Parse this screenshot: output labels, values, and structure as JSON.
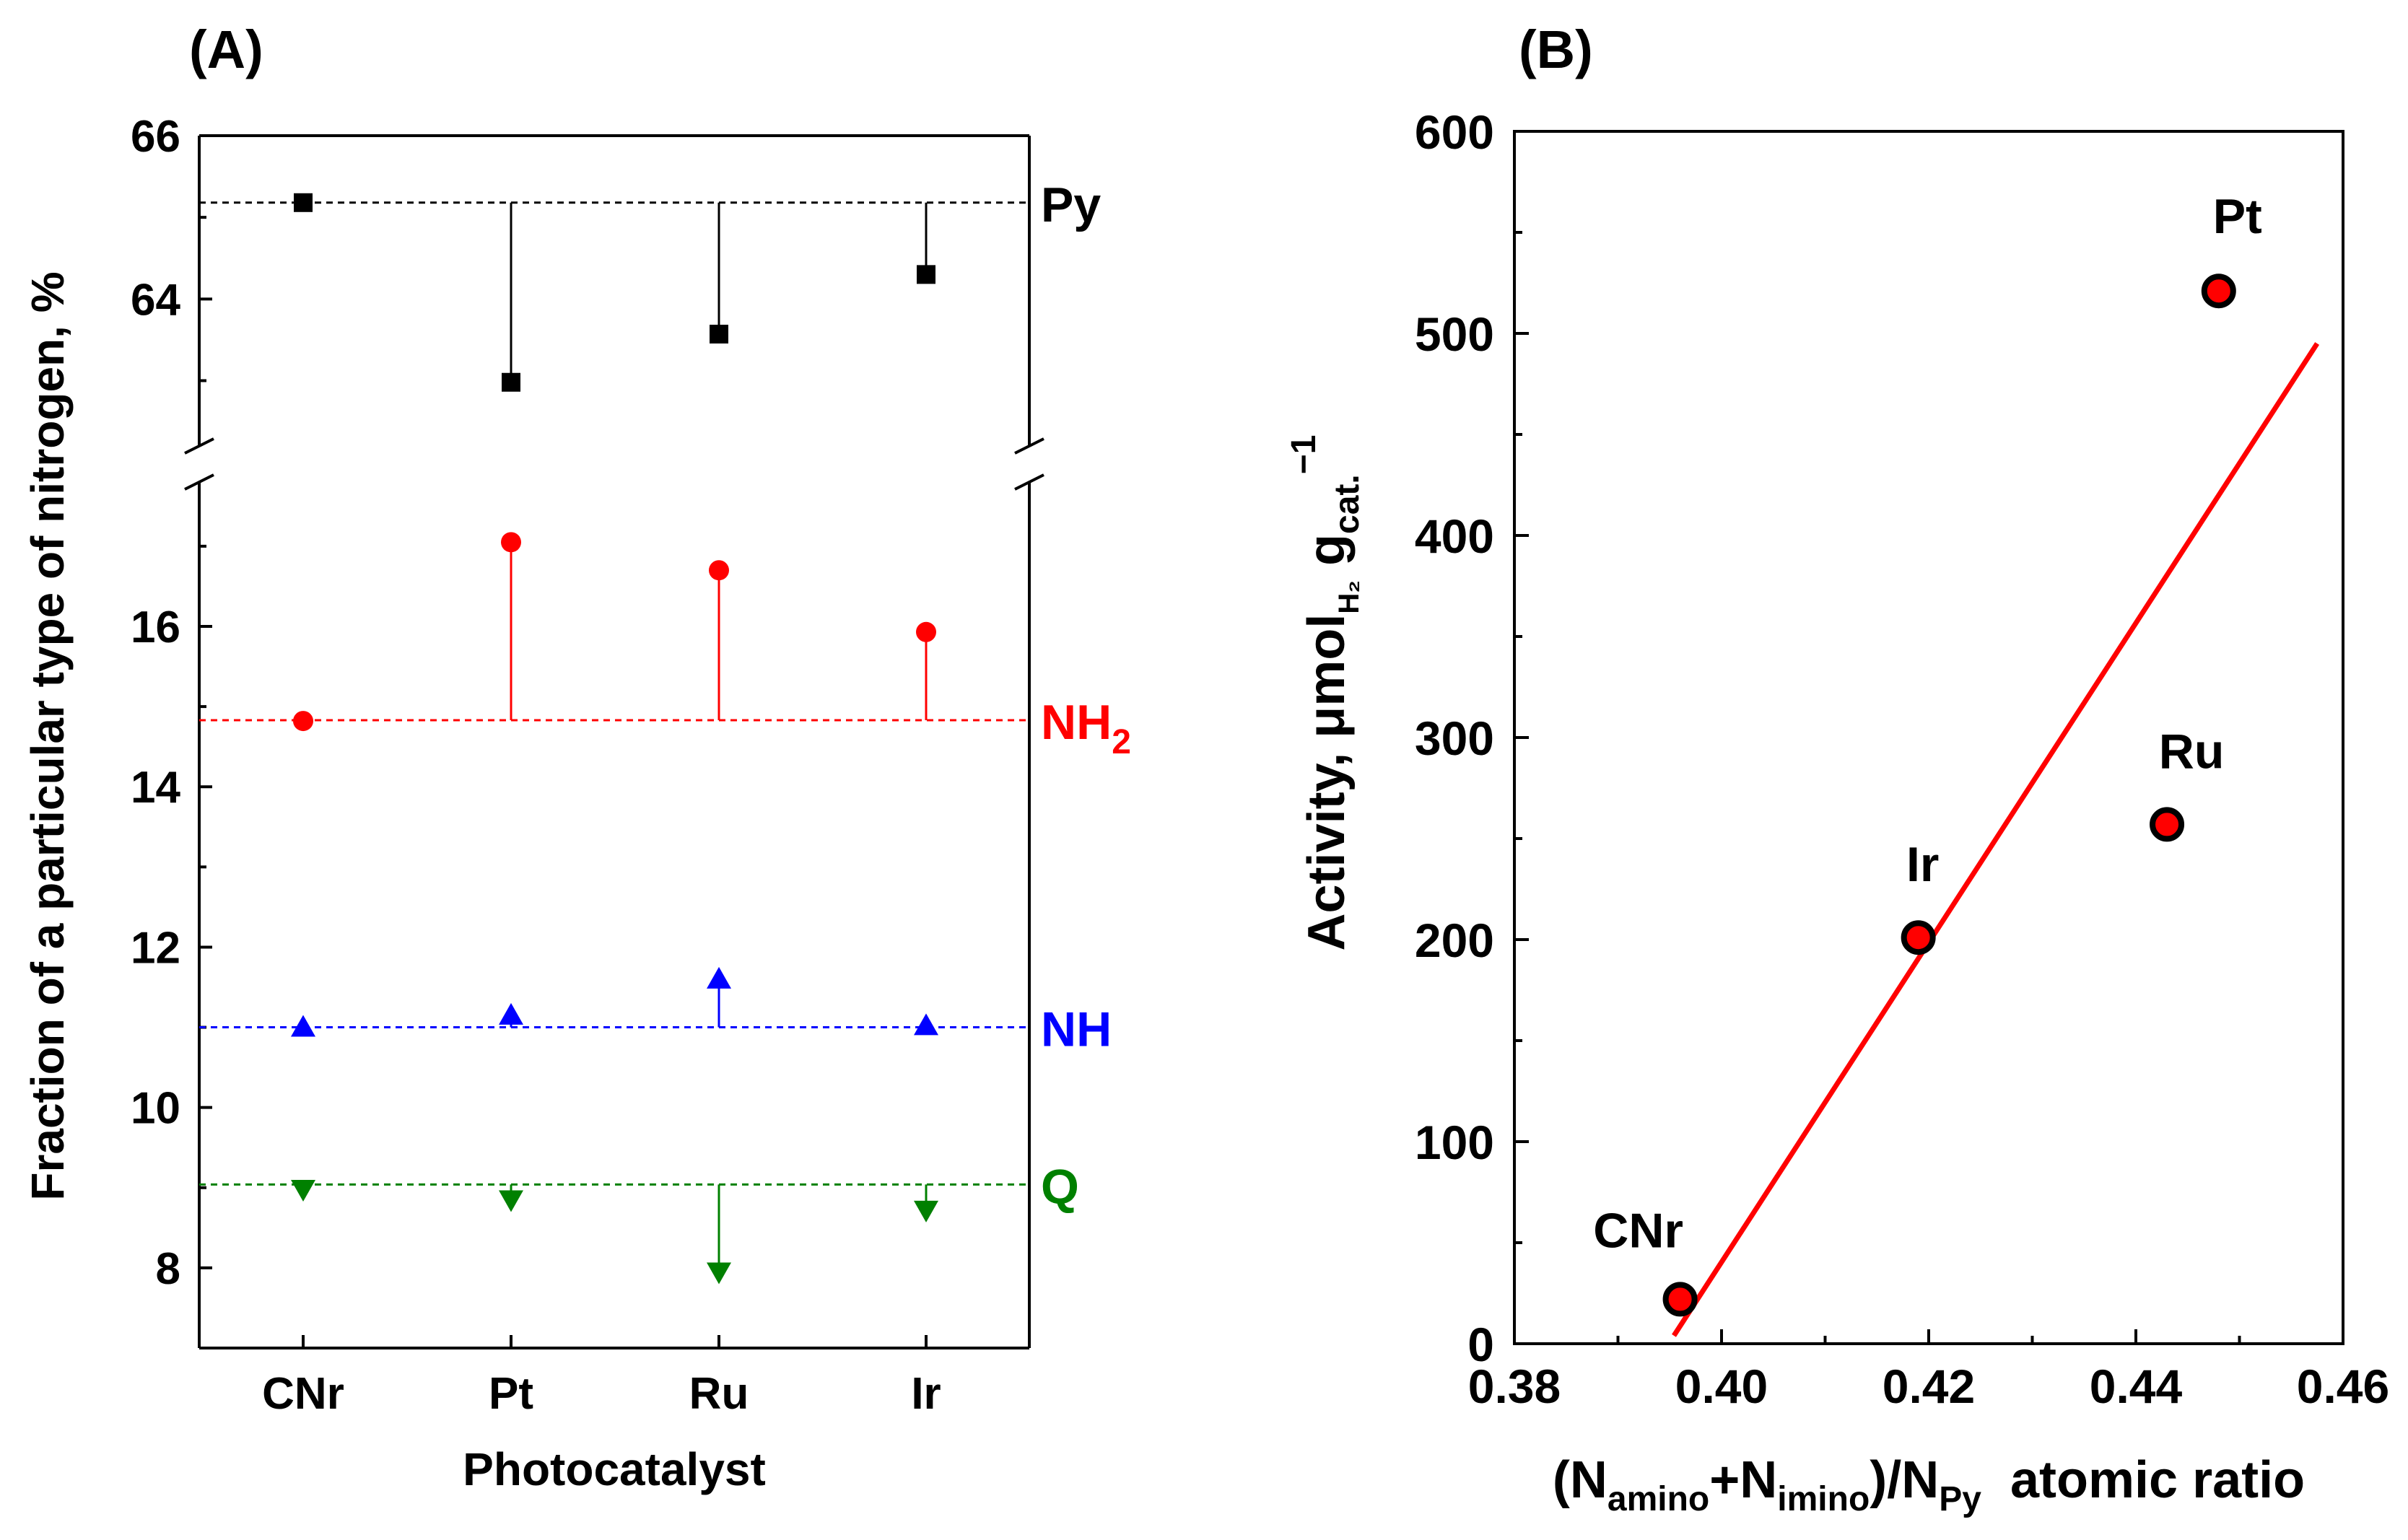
{
  "chart_data": [
    {
      "type": "scatter",
      "panel_label": "(A)",
      "xlabel": "Photocatalyst",
      "ylabel": "Fraction of a particular type of nitrogen, %",
      "categories": [
        "CNr",
        "Pt",
        "Ru",
        "Ir"
      ],
      "axis_break": true,
      "upper_axis": {
        "ylim": [
          62.2,
          66
        ],
        "ticks": [
          64,
          66
        ]
      },
      "lower_axis": {
        "ylim": [
          7,
          17.8
        ],
        "ticks": [
          8,
          10,
          12,
          14,
          16
        ]
      },
      "series": [
        {
          "name": "Py",
          "marker": "square",
          "color": "#000000",
          "axis": "upper",
          "reference": 65.18,
          "values": [
            65.18,
            62.98,
            63.57,
            64.3
          ]
        },
        {
          "name": "NH",
          "sub": "2",
          "marker": "circle",
          "color": "#ff0000",
          "axis": "lower",
          "reference": 14.83,
          "values": [
            14.82,
            17.05,
            16.7,
            15.93
          ]
        },
        {
          "name": "NH",
          "sub": "",
          "marker": "triangle-up",
          "color": "#0000ff",
          "axis": "lower",
          "reference": 11.0,
          "values": [
            11.0,
            11.15,
            11.6,
            11.02
          ]
        },
        {
          "name": "Q",
          "sub": "",
          "marker": "triangle-down",
          "color": "#008000",
          "axis": "lower",
          "reference": 9.04,
          "values": [
            8.98,
            8.85,
            7.95,
            8.72
          ]
        }
      ]
    },
    {
      "type": "scatter",
      "panel_label": "(B)",
      "xlabel": "(Namino+Nimino)/NPy  atomic ratio",
      "xlabel_parts": {
        "open": "(N",
        "s1": "amino",
        "mid": "+N",
        "s2": "imino",
        "close": ")/N",
        "s3": "Py",
        "tail": "  atomic ratio"
      },
      "ylabel": "Activity, μmolH2 gcat.−1",
      "ylabel_parts": {
        "main": "Activity, μmol",
        "sub1": "H₂",
        "g": " g",
        "sub2": "cat.",
        "sup": "−1"
      },
      "xlim": [
        0.38,
        0.46
      ],
      "ylim": [
        0,
        600
      ],
      "xticks": [
        "0.38",
        "0.40",
        "0.42",
        "0.44",
        "0.46"
      ],
      "yticks": [
        "0",
        "100",
        "200",
        "300",
        "400",
        "500",
        "600"
      ],
      "points": [
        {
          "label": "CNr",
          "x": 0.396,
          "y": 22
        },
        {
          "label": "Ir",
          "x": 0.419,
          "y": 201
        },
        {
          "label": "Ru",
          "x": 0.443,
          "y": 257
        },
        {
          "label": "Pt",
          "x": 0.448,
          "y": 521
        }
      ],
      "fit_line": {
        "x": [
          0.3954,
          0.4575
        ],
        "y": [
          4,
          495
        ],
        "color": "#ff0000"
      },
      "marker_fill": "#ff0000"
    }
  ]
}
